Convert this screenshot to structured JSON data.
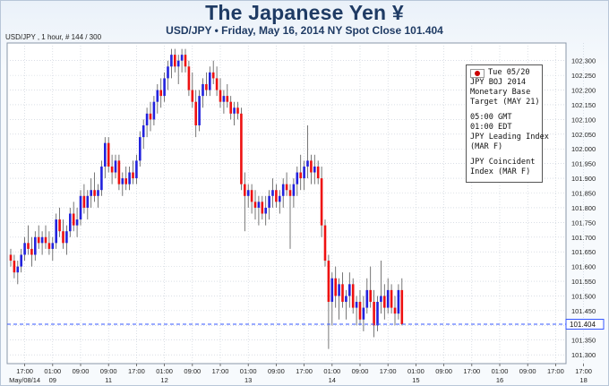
{
  "header": {
    "title": "The Japanese Yen ¥",
    "subtitle": "USD/JPY • Friday, May 16, 2014 NY Spot Close 101.404"
  },
  "chart_info_label": "USD/JPY , 1 hour, # 144 / 300",
  "current_price_label": "101.404",
  "events": {
    "date": "Tue 05/20",
    "group1": [
      "JPY BOJ 2014",
      "Monetary Base",
      "Target (MAY 21)"
    ],
    "group2": [
      "05:00 GMT",
      "01:00 EDT",
      "JPY Leading Index",
      "(MAR F)"
    ],
    "group3": [
      "JPY Coincident",
      "Index (MAR F)"
    ]
  },
  "colors": {
    "up": "#2222dd",
    "down": "#ee1111",
    "grid": "#c4cbd6",
    "price_line": "#3355ff",
    "axis_text": "#222222"
  },
  "chart_data": {
    "type": "candlestick",
    "title": "The Japanese Yen ¥",
    "subtitle": "USD/JPY • Friday, May 16, 2014 NY Spot Close 101.404",
    "ylim": [
      101.27,
      102.36
    ],
    "y_ticks": [
      "101.300",
      "101.350",
      "101.400",
      "101.450",
      "101.500",
      "101.550",
      "101.600",
      "101.650",
      "101.700",
      "101.750",
      "101.800",
      "101.850",
      "101.900",
      "101.950",
      "102.000",
      "102.050",
      "102.100",
      "102.150",
      "102.200",
      "102.250",
      "102.300"
    ],
    "x_ticks": [
      {
        "i": 4,
        "time": "17:00",
        "date": "May/08/14"
      },
      {
        "i": 12,
        "time": "01:00",
        "date": "09"
      },
      {
        "i": 20,
        "time": "09:00",
        "date": ""
      },
      {
        "i": 28,
        "time": "09:00",
        "date": "11"
      },
      {
        "i": 36,
        "time": "17:00",
        "date": ""
      },
      {
        "i": 44,
        "time": "01:00",
        "date": "12"
      },
      {
        "i": 52,
        "time": "09:00",
        "date": ""
      },
      {
        "i": 60,
        "time": "17:00",
        "date": ""
      },
      {
        "i": 68,
        "time": "01:00",
        "date": "13"
      },
      {
        "i": 76,
        "time": "09:00",
        "date": ""
      },
      {
        "i": 84,
        "time": "17:00",
        "date": ""
      },
      {
        "i": 92,
        "time": "01:00",
        "date": "14"
      },
      {
        "i": 100,
        "time": "09:00",
        "date": ""
      },
      {
        "i": 108,
        "time": "17:00",
        "date": ""
      },
      {
        "i": 116,
        "time": "01:00",
        "date": "15"
      },
      {
        "i": 124,
        "time": "09:00",
        "date": ""
      },
      {
        "i": 132,
        "time": "17:00",
        "date": ""
      },
      {
        "i": 140,
        "time": "01:00",
        "date": "16"
      },
      {
        "i": 148,
        "time": "09:00",
        "date": ""
      },
      {
        "i": 156,
        "time": "17:00",
        "date": ""
      },
      {
        "i": 164,
        "time": "17:00",
        "date": "18"
      }
    ],
    "close_level": 101.404,
    "grid": true,
    "candles": [
      [
        101.64,
        101.66,
        101.6,
        101.62
      ],
      [
        101.62,
        101.64,
        101.56,
        101.58
      ],
      [
        101.58,
        101.62,
        101.54,
        101.6
      ],
      [
        101.6,
        101.66,
        101.58,
        101.64
      ],
      [
        101.64,
        101.7,
        101.62,
        101.68
      ],
      [
        101.68,
        101.74,
        101.64,
        101.66
      ],
      [
        101.66,
        101.7,
        101.6,
        101.64
      ],
      [
        101.64,
        101.72,
        101.62,
        101.7
      ],
      [
        101.7,
        101.74,
        101.66,
        101.68
      ],
      [
        101.68,
        101.72,
        101.64,
        101.7
      ],
      [
        101.7,
        101.74,
        101.66,
        101.68
      ],
      [
        101.68,
        101.72,
        101.64,
        101.66
      ],
      [
        101.66,
        101.7,
        101.62,
        101.68
      ],
      [
        101.68,
        101.78,
        101.66,
        101.76
      ],
      [
        101.76,
        101.8,
        101.7,
        101.72
      ],
      [
        101.72,
        101.76,
        101.66,
        101.68
      ],
      [
        101.68,
        101.74,
        101.64,
        101.72
      ],
      [
        101.72,
        101.8,
        101.7,
        101.78
      ],
      [
        101.78,
        101.82,
        101.72,
        101.74
      ],
      [
        101.74,
        101.8,
        101.7,
        101.76
      ],
      [
        101.76,
        101.86,
        101.74,
        101.84
      ],
      [
        101.84,
        101.88,
        101.78,
        101.8
      ],
      [
        101.8,
        101.86,
        101.76,
        101.84
      ],
      [
        101.84,
        101.9,
        101.8,
        101.86
      ],
      [
        101.86,
        101.92,
        101.82,
        101.84
      ],
      [
        101.84,
        101.88,
        101.8,
        101.86
      ],
      [
        101.86,
        101.96,
        101.84,
        101.94
      ],
      [
        101.94,
        102.04,
        101.9,
        102.02
      ],
      [
        102.02,
        102.04,
        101.92,
        101.94
      ],
      [
        101.94,
        101.98,
        101.88,
        101.92
      ],
      [
        101.92,
        101.98,
        101.9,
        101.96
      ],
      [
        101.96,
        101.98,
        101.86,
        101.88
      ],
      [
        101.88,
        101.92,
        101.84,
        101.9
      ],
      [
        101.9,
        101.94,
        101.86,
        101.88
      ],
      [
        101.88,
        101.94,
        101.86,
        101.92
      ],
      [
        101.92,
        101.96,
        101.88,
        101.9
      ],
      [
        101.9,
        101.98,
        101.88,
        101.96
      ],
      [
        101.96,
        102.06,
        101.94,
        102.04
      ],
      [
        102.04,
        102.1,
        102.0,
        102.08
      ],
      [
        102.08,
        102.14,
        102.04,
        102.12
      ],
      [
        102.12,
        102.16,
        102.06,
        102.1
      ],
      [
        102.1,
        102.18,
        102.08,
        102.16
      ],
      [
        102.16,
        102.22,
        102.12,
        102.2
      ],
      [
        102.2,
        102.24,
        102.14,
        102.18
      ],
      [
        102.18,
        102.26,
        102.16,
        102.24
      ],
      [
        102.24,
        102.3,
        102.2,
        102.28
      ],
      [
        102.28,
        102.34,
        102.24,
        102.32
      ],
      [
        102.32,
        102.34,
        102.26,
        102.28
      ],
      [
        102.28,
        102.32,
        102.22,
        102.3
      ],
      [
        102.3,
        102.34,
        102.26,
        102.32
      ],
      [
        102.32,
        102.34,
        102.26,
        102.28
      ],
      [
        102.28,
        102.3,
        102.18,
        102.2
      ],
      [
        102.2,
        102.26,
        102.14,
        102.16
      ],
      [
        102.16,
        102.2,
        102.04,
        102.08
      ],
      [
        102.08,
        102.2,
        102.06,
        102.18
      ],
      [
        102.18,
        102.24,
        102.14,
        102.22
      ],
      [
        102.22,
        102.26,
        102.18,
        102.2
      ],
      [
        102.2,
        102.28,
        102.18,
        102.26
      ],
      [
        102.26,
        102.3,
        102.22,
        102.24
      ],
      [
        102.24,
        102.28,
        102.18,
        102.2
      ],
      [
        102.2,
        102.24,
        102.14,
        102.16
      ],
      [
        102.16,
        102.2,
        102.12,
        102.18
      ],
      [
        102.18,
        102.22,
        102.14,
        102.16
      ],
      [
        102.16,
        102.18,
        102.1,
        102.12
      ],
      [
        102.12,
        102.16,
        102.08,
        102.14
      ],
      [
        102.14,
        102.16,
        102.1,
        102.12
      ],
      [
        102.12,
        102.14,
        101.86,
        101.88
      ],
      [
        101.88,
        101.92,
        101.72,
        101.84
      ],
      [
        101.84,
        101.88,
        101.8,
        101.86
      ],
      [
        101.86,
        101.88,
        101.78,
        101.82
      ],
      [
        101.82,
        101.86,
        101.76,
        101.8
      ],
      [
        101.8,
        101.84,
        101.74,
        101.82
      ],
      [
        101.82,
        101.84,
        101.76,
        101.78
      ],
      [
        101.78,
        101.84,
        101.74,
        101.8
      ],
      [
        101.8,
        101.86,
        101.76,
        101.84
      ],
      [
        101.84,
        101.9,
        101.8,
        101.86
      ],
      [
        101.86,
        101.88,
        101.8,
        101.82
      ],
      [
        101.82,
        101.86,
        101.78,
        101.84
      ],
      [
        101.84,
        101.9,
        101.8,
        101.88
      ],
      [
        101.88,
        101.92,
        101.84,
        101.86
      ],
      [
        101.86,
        101.88,
        101.66,
        101.84
      ],
      [
        101.84,
        101.9,
        101.8,
        101.88
      ],
      [
        101.88,
        101.94,
        101.84,
        101.92
      ],
      [
        101.92,
        101.98,
        101.86,
        101.9
      ],
      [
        101.9,
        101.96,
        101.86,
        101.94
      ],
      [
        101.94,
        102.08,
        101.9,
        101.96
      ],
      [
        101.96,
        101.98,
        101.88,
        101.92
      ],
      [
        101.92,
        101.98,
        101.88,
        101.94
      ],
      [
        101.94,
        101.96,
        101.88,
        101.9
      ],
      [
        101.9,
        101.94,
        101.7,
        101.74
      ],
      [
        101.74,
        101.76,
        101.6,
        101.62
      ],
      [
        101.62,
        101.64,
        101.32,
        101.48
      ],
      [
        101.48,
        101.58,
        101.4,
        101.56
      ],
      [
        101.56,
        101.6,
        101.46,
        101.5
      ],
      [
        101.5,
        101.56,
        101.42,
        101.54
      ],
      [
        101.54,
        101.58,
        101.46,
        101.48
      ],
      [
        101.48,
        101.52,
        101.42,
        101.5
      ],
      [
        101.5,
        101.58,
        101.46,
        101.54
      ],
      [
        101.54,
        101.56,
        101.44,
        101.46
      ],
      [
        101.46,
        101.5,
        101.4,
        101.48
      ],
      [
        101.48,
        101.52,
        101.4,
        101.42
      ],
      [
        101.42,
        101.5,
        101.38,
        101.46
      ],
      [
        101.46,
        101.56,
        101.44,
        101.52
      ],
      [
        101.52,
        101.6,
        101.46,
        101.48
      ],
      [
        101.48,
        101.52,
        101.36,
        101.4
      ],
      [
        101.4,
        101.5,
        101.38,
        101.48
      ],
      [
        101.48,
        101.62,
        101.44,
        101.5
      ],
      [
        101.5,
        101.54,
        101.42,
        101.46
      ],
      [
        101.46,
        101.56,
        101.44,
        101.52
      ],
      [
        101.52,
        101.54,
        101.44,
        101.46
      ],
      [
        101.46,
        101.5,
        101.4,
        101.44
      ],
      [
        101.44,
        101.54,
        101.42,
        101.52
      ],
      [
        101.52,
        101.56,
        101.4,
        101.404
      ]
    ]
  }
}
